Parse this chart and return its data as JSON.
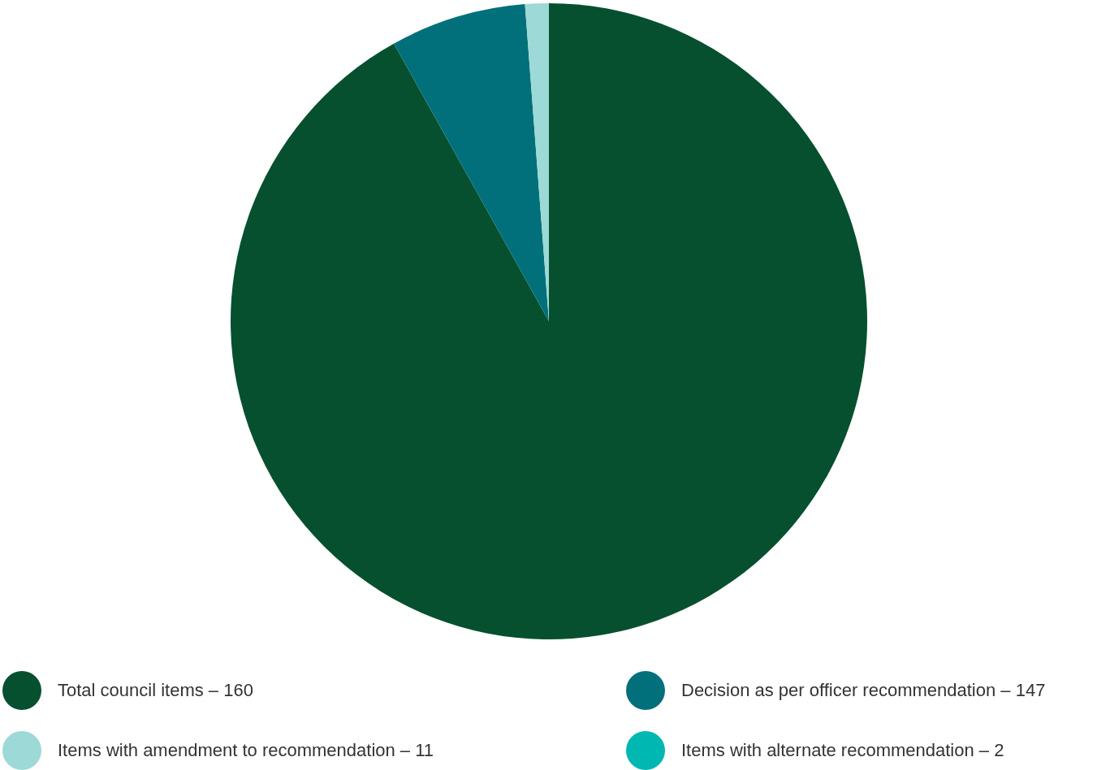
{
  "chart_data": {
    "type": "pie",
    "categories": [
      "Total council items – 160",
      "Decision as per officer recommendation – 147",
      "Items with amendment to recommendation – 11",
      "Items with alternate recommendation – 2"
    ],
    "values": [
      91.9,
      6.9,
      1.2,
      null
    ],
    "colors": [
      "#06502f",
      "#02707a",
      "#9dd9d6",
      "#00b7b2"
    ],
    "legend": "bottom"
  }
}
